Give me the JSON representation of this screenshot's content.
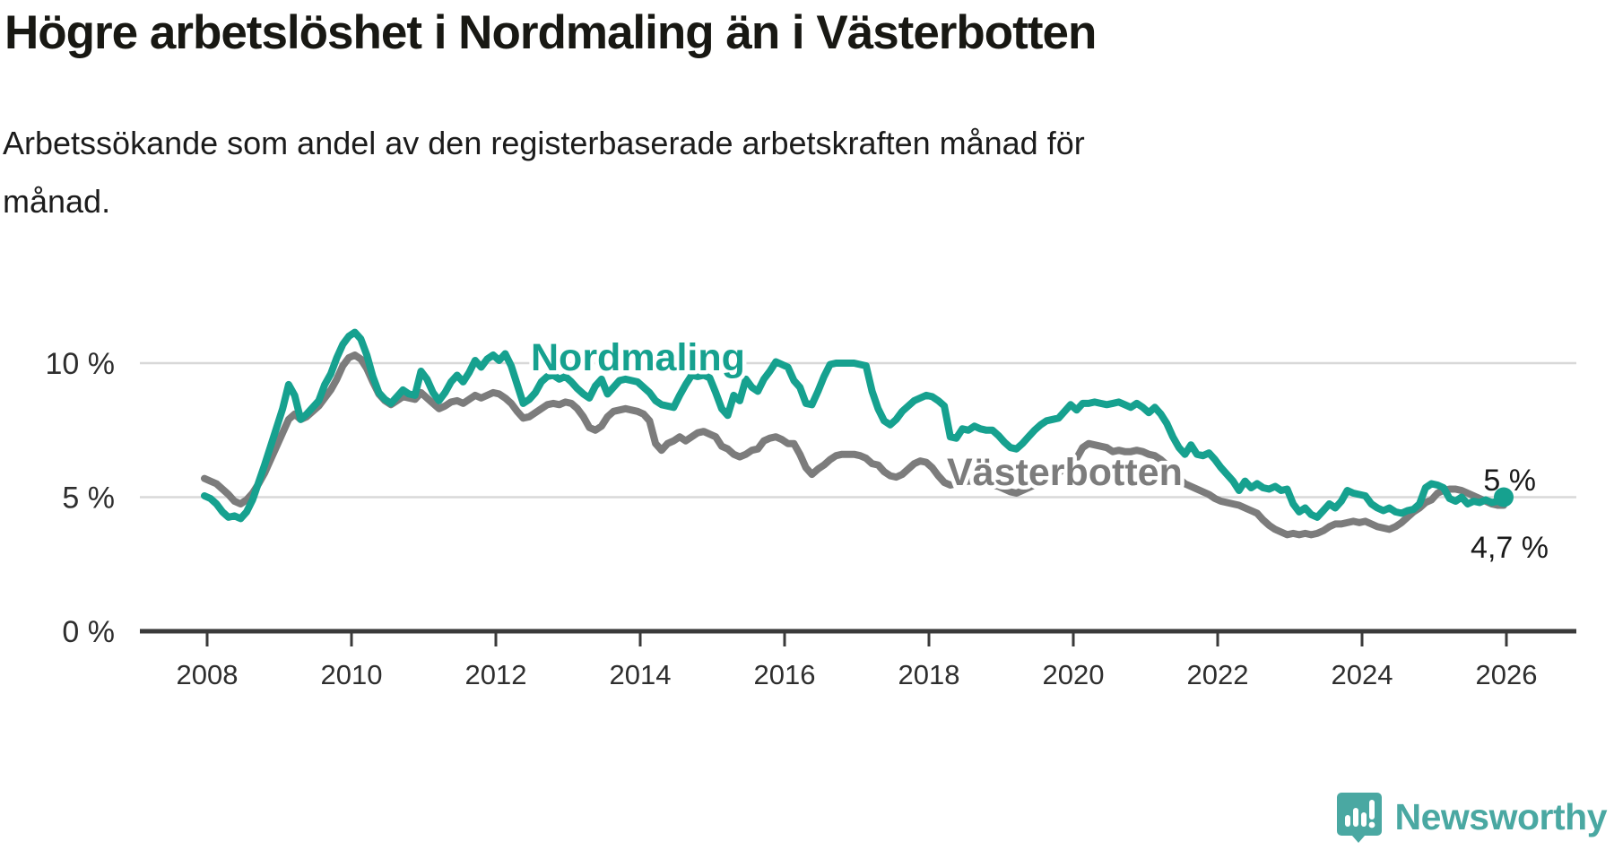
{
  "title": "Högre arbetslöshet i Nordmaling än i Västerbotten",
  "subtitle": "Arbetssökande som andel av den registerbaserade arbetskraften månad för månad.",
  "branding": {
    "logo_text": "Newsworthy",
    "logo_color": "#4aa8a2"
  },
  "colors": {
    "nordmaling": "#16a18f",
    "vasterbotten": "#7c7c7c",
    "grid": "#d8d8d8",
    "axis": "#3a3a3a",
    "tick_text": "#2e2e2e",
    "title_text": "#181813"
  },
  "chart_data": {
    "type": "line",
    "title": "Högre arbetslöshet i Nordmaling än i Västerbotten",
    "subtitle": "Arbetssökande som andel av den registerbaserade arbetskraften månad för månad.",
    "unit": "%",
    "x_monthly_from": "2008-01",
    "x_monthly_to": "2026-01",
    "x_tick_labels": [
      "2008",
      "2010",
      "2012",
      "2014",
      "2016",
      "2018",
      "2020",
      "2022",
      "2024",
      "2026"
    ],
    "y_axis": {
      "ticks": [
        0,
        5,
        10
      ],
      "tick_labels": [
        "0 %",
        "5 %",
        "10 %"
      ],
      "ylim": [
        0,
        11.8
      ]
    },
    "grid": "horizontal-only",
    "legend": "inline-labels",
    "series": [
      {
        "name": "Nordmaling",
        "color": "#16a18f",
        "end_label": "5 %",
        "end_value": 5.0,
        "values": [
          5.05,
          4.95,
          4.75,
          4.45,
          4.25,
          4.3,
          4.2,
          4.45,
          4.9,
          5.55,
          6.2,
          6.9,
          7.6,
          8.3,
          9.2,
          8.8,
          7.9,
          8.1,
          8.35,
          8.6,
          9.2,
          9.6,
          10.2,
          10.7,
          11.0,
          11.15,
          10.9,
          10.3,
          9.5,
          8.9,
          8.65,
          8.5,
          8.75,
          9.0,
          8.85,
          8.8,
          9.7,
          9.4,
          8.9,
          8.6,
          8.9,
          9.3,
          9.55,
          9.3,
          9.65,
          10.1,
          9.85,
          10.15,
          10.3,
          10.1,
          10.35,
          9.9,
          9.2,
          8.5,
          8.65,
          8.9,
          9.3,
          9.5,
          9.55,
          9.4,
          9.5,
          9.3,
          9.05,
          8.85,
          8.7,
          9.15,
          9.4,
          8.85,
          9.1,
          9.35,
          9.4,
          9.35,
          9.3,
          9.1,
          8.9,
          8.6,
          8.45,
          8.4,
          8.35,
          8.8,
          9.2,
          9.55,
          9.5,
          9.55,
          9.45,
          8.9,
          8.3,
          8.05,
          8.8,
          8.6,
          9.4,
          9.1,
          8.95,
          9.4,
          9.7,
          10.05,
          9.95,
          9.85,
          9.35,
          9.1,
          8.5,
          8.45,
          8.95,
          9.5,
          9.95,
          10.0,
          10.0,
          10.0,
          10.0,
          9.95,
          9.9,
          8.95,
          8.3,
          7.85,
          7.7,
          7.9,
          8.2,
          8.4,
          8.6,
          8.7,
          8.8,
          8.75,
          8.6,
          8.4,
          7.25,
          7.2,
          7.55,
          7.5,
          7.65,
          7.55,
          7.5,
          7.5,
          7.3,
          7.05,
          6.85,
          6.8,
          7.0,
          7.25,
          7.5,
          7.7,
          7.85,
          7.9,
          7.95,
          8.2,
          8.45,
          8.25,
          8.5,
          8.5,
          8.55,
          8.5,
          8.45,
          8.5,
          8.55,
          8.45,
          8.35,
          8.5,
          8.35,
          8.15,
          8.35,
          8.1,
          7.75,
          7.25,
          6.85,
          6.6,
          6.95,
          6.6,
          6.55,
          6.65,
          6.4,
          6.1,
          5.85,
          5.6,
          5.25,
          5.6,
          5.35,
          5.5,
          5.35,
          5.3,
          5.4,
          5.25,
          5.3,
          4.75,
          4.45,
          4.6,
          4.35,
          4.25,
          4.5,
          4.75,
          4.6,
          4.85,
          5.25,
          5.15,
          5.1,
          5.05,
          4.75,
          4.6,
          4.5,
          4.6,
          4.45,
          4.4,
          4.5,
          4.55,
          4.75,
          5.35,
          5.5,
          5.45,
          5.35,
          4.95,
          4.85,
          5.0,
          4.75,
          4.85,
          4.8,
          4.9,
          4.8,
          4.85,
          5.0
        ]
      },
      {
        "name": "Västerbotten",
        "color": "#7c7c7c",
        "end_label": "4,7 %",
        "end_value": 4.7,
        "values": [
          5.7,
          5.6,
          5.5,
          5.3,
          5.1,
          4.85,
          4.75,
          4.9,
          5.15,
          5.5,
          5.9,
          6.4,
          6.9,
          7.4,
          7.9,
          8.1,
          7.9,
          8.0,
          8.2,
          8.4,
          8.7,
          9.0,
          9.4,
          9.9,
          10.2,
          10.3,
          10.15,
          9.8,
          9.3,
          8.85,
          8.6,
          8.45,
          8.6,
          8.75,
          8.7,
          8.65,
          8.9,
          8.7,
          8.5,
          8.3,
          8.4,
          8.55,
          8.6,
          8.5,
          8.65,
          8.8,
          8.7,
          8.8,
          8.9,
          8.85,
          8.7,
          8.5,
          8.2,
          7.95,
          8.0,
          8.15,
          8.3,
          8.45,
          8.5,
          8.45,
          8.55,
          8.5,
          8.3,
          8.0,
          7.6,
          7.5,
          7.65,
          8.0,
          8.2,
          8.25,
          8.3,
          8.25,
          8.2,
          8.1,
          7.85,
          7.0,
          6.75,
          7.0,
          7.1,
          7.25,
          7.1,
          7.25,
          7.4,
          7.45,
          7.35,
          7.25,
          6.9,
          6.8,
          6.6,
          6.5,
          6.6,
          6.75,
          6.8,
          7.1,
          7.2,
          7.25,
          7.15,
          7.0,
          7.0,
          6.6,
          6.1,
          5.85,
          6.05,
          6.2,
          6.4,
          6.55,
          6.6,
          6.6,
          6.6,
          6.55,
          6.45,
          6.25,
          6.2,
          5.95,
          5.8,
          5.75,
          5.85,
          6.05,
          6.25,
          6.35,
          6.3,
          6.1,
          5.8,
          5.55,
          5.45,
          5.5,
          5.55,
          5.6,
          5.6,
          5.55,
          5.5,
          5.45,
          5.4,
          5.3,
          5.2,
          5.15,
          5.25,
          5.35,
          5.45,
          5.6,
          5.7,
          5.8,
          5.9,
          6.1,
          6.4,
          6.45,
          6.85,
          7.0,
          6.95,
          6.9,
          6.85,
          6.7,
          6.75,
          6.7,
          6.7,
          6.75,
          6.7,
          6.6,
          6.55,
          6.4,
          6.2,
          5.9,
          5.7,
          5.5,
          5.4,
          5.3,
          5.2,
          5.1,
          4.95,
          4.85,
          4.8,
          4.75,
          4.7,
          4.6,
          4.5,
          4.4,
          4.15,
          3.95,
          3.8,
          3.7,
          3.6,
          3.65,
          3.6,
          3.65,
          3.6,
          3.65,
          3.75,
          3.9,
          4.0,
          4.0,
          4.05,
          4.1,
          4.05,
          4.1,
          4.0,
          3.9,
          3.85,
          3.8,
          3.9,
          4.05,
          4.25,
          4.45,
          4.6,
          4.8,
          4.9,
          5.15,
          5.25,
          5.3,
          5.3,
          5.25,
          5.15,
          5.05,
          4.95,
          4.85,
          4.75,
          4.7,
          4.7
        ]
      }
    ]
  }
}
